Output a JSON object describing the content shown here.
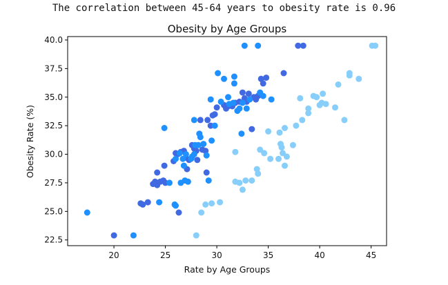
{
  "output_text": "The correlation between 45-64 years to obesity rate is 0.96",
  "chart_data": {
    "type": "scatter",
    "title": "Obesity by Age Groups",
    "xlabel": "Rate by Age Groups",
    "ylabel": "Obesity Rate (%)",
    "xlim": [
      15.5,
      46.5
    ],
    "ylim": [
      22.0,
      40.3
    ],
    "xticks": [
      20,
      25,
      30,
      35,
      40,
      45
    ],
    "yticks": [
      22.5,
      25.0,
      27.5,
      30.0,
      32.5,
      35.0,
      37.5,
      40.0
    ],
    "grid": false,
    "series": [
      {
        "color": "#4169e1",
        "points": [
          [
            20.0,
            22.9
          ],
          [
            22.6,
            25.7
          ],
          [
            22.8,
            25.6
          ],
          [
            23.3,
            25.8
          ],
          [
            23.8,
            27.4
          ],
          [
            24.0,
            27.6
          ],
          [
            24.2,
            28.4
          ],
          [
            24.2,
            27.3
          ],
          [
            24.5,
            27.6
          ],
          [
            24.8,
            27.7
          ],
          [
            24.9,
            29.0
          ],
          [
            25.0,
            27.5
          ],
          [
            25.8,
            29.4
          ],
          [
            26.0,
            30.1
          ],
          [
            26.2,
            30.0
          ],
          [
            26.3,
            24.9
          ],
          [
            26.5,
            30.2
          ],
          [
            26.8,
            30.3
          ],
          [
            27.0,
            29.7
          ],
          [
            27.1,
            28.7
          ],
          [
            27.3,
            29.5
          ],
          [
            27.6,
            30.8
          ],
          [
            27.8,
            30.5
          ],
          [
            28.0,
            30.3
          ],
          [
            28.1,
            29.5
          ],
          [
            28.4,
            33.0
          ],
          [
            28.6,
            30.4
          ],
          [
            28.9,
            30.3
          ],
          [
            29.0,
            28.4
          ],
          [
            29.1,
            33.0
          ],
          [
            29.4,
            32.5
          ],
          [
            29.6,
            33.4
          ],
          [
            29.8,
            33.5
          ],
          [
            30.0,
            34.1
          ],
          [
            30.7,
            34.3
          ],
          [
            30.9,
            34.0
          ],
          [
            31.1,
            34.2
          ],
          [
            31.5,
            34.2
          ],
          [
            31.8,
            34.5
          ],
          [
            32.2,
            34.6
          ],
          [
            32.5,
            35.4
          ],
          [
            32.7,
            34.9
          ],
          [
            32.9,
            34.6
          ],
          [
            33.1,
            35.3
          ],
          [
            33.4,
            32.2
          ],
          [
            33.6,
            35.0
          ],
          [
            33.8,
            34.8
          ],
          [
            34.0,
            35.1
          ],
          [
            34.3,
            36.6
          ],
          [
            34.5,
            36.2
          ],
          [
            34.8,
            36.7
          ],
          [
            36.5,
            37.1
          ],
          [
            37.9,
            39.5
          ],
          [
            38.4,
            39.5
          ]
        ]
      },
      {
        "color": "#1e90ff",
        "points": [
          [
            17.4,
            24.9
          ],
          [
            21.9,
            22.9
          ],
          [
            24.4,
            25.8
          ],
          [
            24.9,
            32.3
          ],
          [
            25.4,
            27.5
          ],
          [
            25.9,
            25.6
          ],
          [
            26.0,
            25.5
          ],
          [
            26.0,
            29.6
          ],
          [
            26.4,
            30.1
          ],
          [
            26.5,
            27.5
          ],
          [
            26.7,
            29.6
          ],
          [
            26.8,
            29.0
          ],
          [
            26.9,
            27.7
          ],
          [
            27.0,
            30.0
          ],
          [
            27.2,
            27.6
          ],
          [
            27.5,
            29.6
          ],
          [
            27.6,
            29.8
          ],
          [
            27.8,
            30.0
          ],
          [
            27.8,
            33.0
          ],
          [
            27.9,
            30.8
          ],
          [
            28.2,
            30.8
          ],
          [
            28.3,
            31.8
          ],
          [
            28.4,
            31.5
          ],
          [
            28.7,
            30.9
          ],
          [
            29.0,
            29.9
          ],
          [
            29.2,
            27.7
          ],
          [
            29.4,
            34.8
          ],
          [
            29.5,
            31.2
          ],
          [
            29.8,
            32.5
          ],
          [
            30.1,
            37.1
          ],
          [
            30.4,
            34.6
          ],
          [
            30.7,
            36.6
          ],
          [
            31.1,
            35.0
          ],
          [
            31.2,
            34.4
          ],
          [
            31.6,
            34.5
          ],
          [
            31.7,
            36.8
          ],
          [
            31.7,
            36.2
          ],
          [
            32.0,
            33.8
          ],
          [
            32.2,
            34.0
          ],
          [
            32.4,
            31.8
          ],
          [
            32.5,
            34.5
          ],
          [
            32.7,
            39.5
          ],
          [
            32.9,
            34.0
          ],
          [
            33.2,
            34.8
          ],
          [
            34.0,
            39.5
          ],
          [
            34.2,
            35.4
          ],
          [
            34.5,
            35.1
          ],
          [
            35.3,
            34.8
          ]
        ]
      },
      {
        "color": "#87cefa",
        "points": [
          [
            28.0,
            22.9
          ],
          [
            28.5,
            24.9
          ],
          [
            28.9,
            25.6
          ],
          [
            29.5,
            25.7
          ],
          [
            30.3,
            25.8
          ],
          [
            31.8,
            27.6
          ],
          [
            31.8,
            30.2
          ],
          [
            32.2,
            27.5
          ],
          [
            32.5,
            26.9
          ],
          [
            32.8,
            27.7
          ],
          [
            33.4,
            27.7
          ],
          [
            33.9,
            28.7
          ],
          [
            34.0,
            28.3
          ],
          [
            34.2,
            30.4
          ],
          [
            34.6,
            30.1
          ],
          [
            35.0,
            32.0
          ],
          [
            35.2,
            29.6
          ],
          [
            36.0,
            29.6
          ],
          [
            36.1,
            31.9
          ],
          [
            36.2,
            30.9
          ],
          [
            36.3,
            30.6
          ],
          [
            36.4,
            30.1
          ],
          [
            36.6,
            32.3
          ],
          [
            36.6,
            29.0
          ],
          [
            36.8,
            29.8
          ],
          [
            37.4,
            30.8
          ],
          [
            37.7,
            32.5
          ],
          [
            38.1,
            34.9
          ],
          [
            38.3,
            33.0
          ],
          [
            38.9,
            33.6
          ],
          [
            38.9,
            34.0
          ],
          [
            39.4,
            35.1
          ],
          [
            39.7,
            35.0
          ],
          [
            40.0,
            34.3
          ],
          [
            40.2,
            34.5
          ],
          [
            40.3,
            35.3
          ],
          [
            40.6,
            34.4
          ],
          [
            41.5,
            34.1
          ],
          [
            41.8,
            36.1
          ],
          [
            42.4,
            33.0
          ],
          [
            42.9,
            37.1
          ],
          [
            42.9,
            36.9
          ],
          [
            43.8,
            36.6
          ],
          [
            45.1,
            39.5
          ],
          [
            45.4,
            39.5
          ]
        ]
      }
    ]
  }
}
